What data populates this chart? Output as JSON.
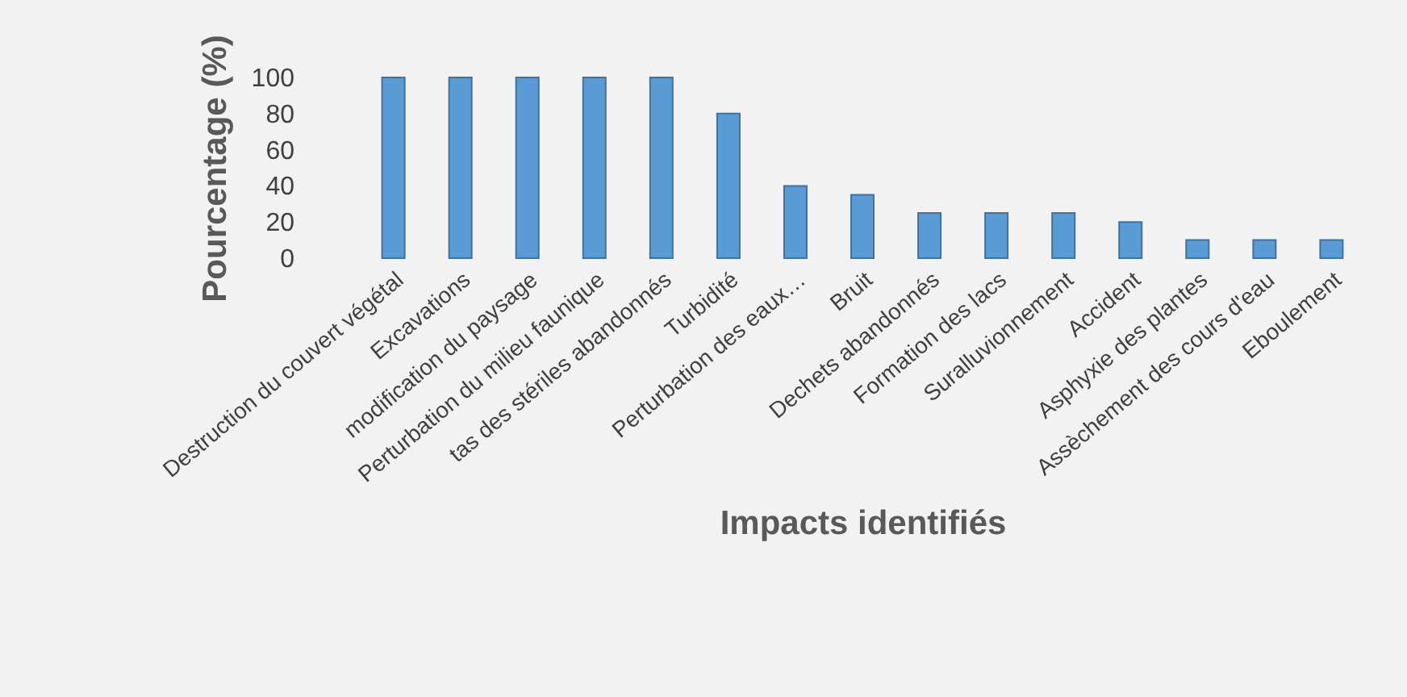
{
  "chart_data": {
    "type": "bar",
    "xlabel": "Impacts identifiés",
    "ylabel": "Pourcentage (%)",
    "categories": [
      "Destruction du couvert végétal",
      "Excavations",
      "modification du paysage",
      "Perturbation du milieu faunique",
      "tas des stériles abandonnés",
      "Turbidité",
      "Perturbation des eaux…",
      "Bruit",
      "Dechets abandonnés",
      "Formation des lacs",
      "Suralluvionnement",
      "Accident",
      "Asphyxie des plantes",
      "Assèchement des cours d'eau",
      "Eboulement"
    ],
    "values": [
      100,
      100,
      100,
      100,
      100,
      80,
      40,
      35,
      25,
      25,
      25,
      20,
      10,
      10,
      10
    ],
    "color": "#5b9bd5",
    "ylim": [
      0,
      100
    ],
    "yticks": [
      0,
      20,
      40,
      60,
      80,
      100
    ],
    "grid": false
  }
}
